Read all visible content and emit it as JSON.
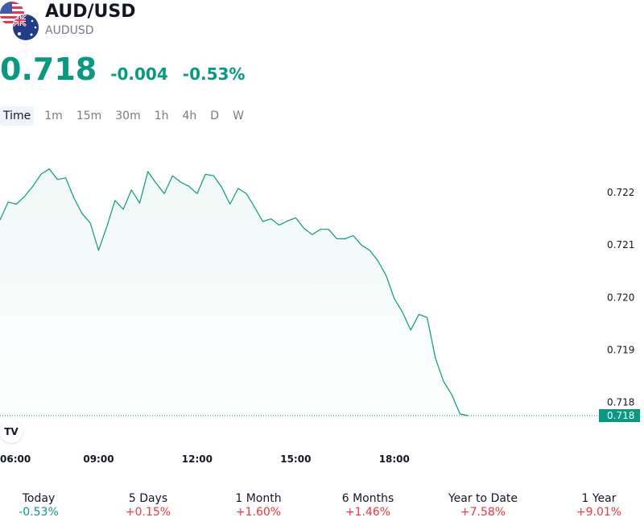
{
  "header": {
    "symbol": "AUD/USD",
    "ticker": "AUDUSD"
  },
  "quote": {
    "price": "0.718",
    "change": "-0.004",
    "change_pct": "-0.53%"
  },
  "intervals": [
    "Time",
    "1m",
    "15m",
    "30m",
    "1h",
    "4h",
    "D",
    "W"
  ],
  "active_interval": "Time",
  "logo_text": "TV",
  "colors": {
    "line": "#089981",
    "down_text": "#089981",
    "up_text": "#f23645",
    "area_fill": "#089981"
  },
  "performance": [
    {
      "label": "Today",
      "value": "-0.53%",
      "dir": "down"
    },
    {
      "label": "5 Days",
      "value": "+0.15%",
      "dir": "up"
    },
    {
      "label": "1 Month",
      "value": "+1.60%",
      "dir": "up"
    },
    {
      "label": "6 Months",
      "value": "+1.46%",
      "dir": "up"
    },
    {
      "label": "Year to Date",
      "value": "+7.58%",
      "dir": "up"
    },
    {
      "label": "1 Year",
      "value": "+9.01%",
      "dir": "up"
    }
  ],
  "chart_data": {
    "type": "area",
    "title": "",
    "xlabel": "",
    "ylabel": "",
    "y_ticks": [
      "0.722",
      "0.721",
      "0.720",
      "0.719",
      "0.718"
    ],
    "y_tick_values": [
      0.722,
      0.721,
      0.72,
      0.719,
      0.718
    ],
    "x_ticks": [
      "06:00",
      "09:00",
      "12:00",
      "15:00",
      "18:00"
    ],
    "x_tick_hours": [
      6,
      9,
      12,
      15,
      18
    ],
    "ylim": [
      0.71775,
      0.7226
    ],
    "xlim": [
      6,
      25.6
    ],
    "last_value": 0.71775,
    "last_value_label": "0.718",
    "grid": false,
    "series": [
      {
        "x": [
          6.0,
          6.25,
          6.5,
          6.75,
          7.0,
          7.25,
          7.5,
          7.75,
          8.0,
          8.25,
          8.5,
          8.75,
          9.0,
          9.25,
          9.5,
          9.75,
          10.0,
          10.25,
          10.5,
          10.75,
          11.0,
          11.25,
          11.5,
          11.75,
          12.0,
          12.25,
          12.5,
          12.75,
          13.0,
          13.25,
          13.5,
          13.75,
          14.0,
          14.25,
          14.5,
          14.75,
          15.0,
          15.25,
          15.5,
          15.75,
          16.0,
          16.25,
          16.5,
          16.75,
          17.0,
          17.25,
          17.5,
          17.75,
          18.0,
          18.25,
          18.5,
          18.75,
          19.0,
          19.25,
          19.5,
          19.75,
          20.0,
          20.25
        ],
        "y": [
          0.72148,
          0.72182,
          0.72178,
          0.72193,
          0.72212,
          0.72235,
          0.72245,
          0.72225,
          0.72228,
          0.7219,
          0.7216,
          0.72142,
          0.7209,
          0.72135,
          0.72185,
          0.72168,
          0.72205,
          0.7218,
          0.7224,
          0.72218,
          0.72198,
          0.72232,
          0.7222,
          0.72212,
          0.72198,
          0.72235,
          0.72232,
          0.7221,
          0.72178,
          0.72208,
          0.72198,
          0.72172,
          0.72145,
          0.7215,
          0.72138,
          0.72146,
          0.72152,
          0.72132,
          0.7212,
          0.7213,
          0.7213,
          0.72112,
          0.72112,
          0.72118,
          0.721,
          0.7209,
          0.7207,
          0.72042,
          0.71998,
          0.71972,
          0.71938,
          0.71968,
          0.71962,
          0.71885,
          0.7184,
          0.71815,
          0.71778,
          0.71775
        ]
      }
    ]
  }
}
